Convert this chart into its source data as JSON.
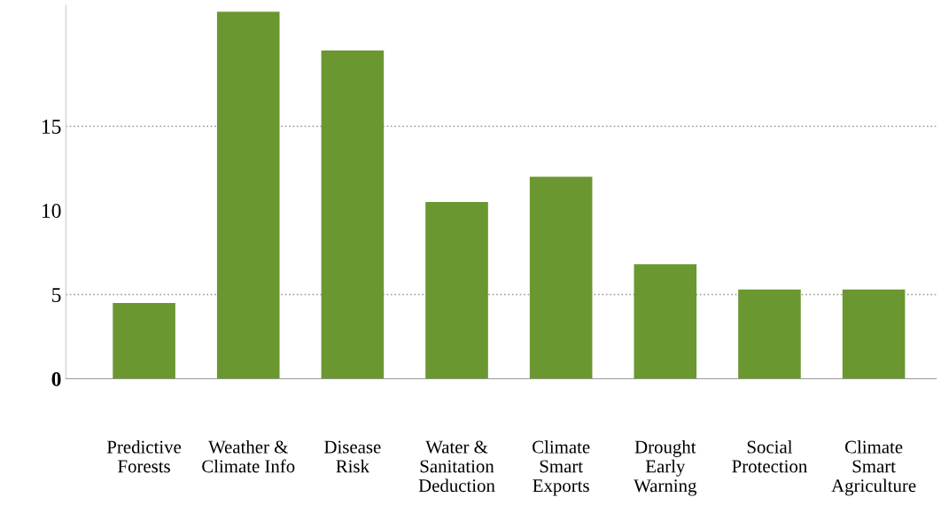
{
  "chart_data": {
    "type": "bar",
    "categories": [
      "Predictive\nForests",
      "Weather &\nClimate Info",
      "Disease\nRisk",
      "Water &\nSanitation\nDeduction",
      "Climate\nSmart\nExports",
      "Drought\nEarly\nWarning",
      "Social\nProtection",
      "Climate\nSmart\nAgriculture"
    ],
    "values": [
      4.5,
      21.8,
      19.5,
      10.5,
      12.0,
      6.8,
      5.3,
      5.3
    ],
    "color": "#6a972f",
    "ylim": [
      0,
      22.2
    ],
    "yticks": [
      0,
      5,
      10,
      15
    ],
    "grid": false,
    "ref_lines": [
      {
        "axis": "y",
        "value": 5,
        "line_style": "dotted",
        "color": "#999999"
      },
      {
        "axis": "y",
        "value": 15,
        "line_style": "dotted",
        "color": "#999999"
      }
    ]
  }
}
